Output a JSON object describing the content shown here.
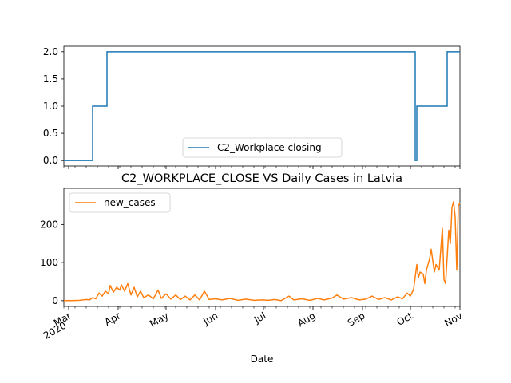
{
  "colors": {
    "series_blue": "#1f77b4",
    "series_orange": "#ff7f0e",
    "axes": "#000000",
    "legend_border": "#cccccc"
  },
  "chart_data": [
    {
      "type": "line",
      "title": "",
      "xlabel": "",
      "ylabel": "",
      "legend_placement": "lower center",
      "grid": false,
      "x_range": [
        "2020-02-27",
        "2020-11-01"
      ],
      "ylim": [
        -0.1,
        2.1
      ],
      "yticks": [
        "0.0",
        "0.5",
        "1.0",
        "1.5",
        "2.0"
      ],
      "x_ticklabels_shown": false,
      "series": [
        {
          "name": "C2_Workplace closing",
          "color": "#1f77b4",
          "step": true,
          "points": [
            [
              "2020-02-27",
              0
            ],
            [
              "2020-03-16",
              1
            ],
            [
              "2020-03-25",
              2
            ],
            [
              "2020-10-04",
              0
            ],
            [
              "2020-10-05",
              1
            ],
            [
              "2020-10-24",
              2
            ],
            [
              "2020-11-01",
              2
            ]
          ]
        }
      ]
    },
    {
      "type": "line",
      "title": "C2_WORKPLACE_CLOSE VS Daily Cases in Latvia",
      "xlabel": "Date",
      "ylabel": "",
      "legend_placement": "upper left",
      "grid": false,
      "x_range": [
        "2020-02-27",
        "2020-11-01"
      ],
      "ylim": [
        -15,
        295
      ],
      "yticks": [
        "0",
        "100",
        "200"
      ],
      "xticks": [
        {
          "date": "2020-03-01",
          "label": "Mar",
          "label2": "2020"
        },
        {
          "date": "2020-04-01",
          "label": "Apr"
        },
        {
          "date": "2020-05-01",
          "label": "May"
        },
        {
          "date": "2020-06-01",
          "label": "Jun"
        },
        {
          "date": "2020-07-01",
          "label": "Jul"
        },
        {
          "date": "2020-08-01",
          "label": "Aug"
        },
        {
          "date": "2020-09-01",
          "label": "Sep"
        },
        {
          "date": "2020-10-01",
          "label": "Oct"
        },
        {
          "date": "2020-11-01",
          "label": "Nov"
        }
      ],
      "series": [
        {
          "name": "new_cases",
          "color": "#ff7f0e",
          "points": [
            [
              "2020-02-27",
              0
            ],
            [
              "2020-03-03",
              0
            ],
            [
              "2020-03-08",
              1
            ],
            [
              "2020-03-12",
              3
            ],
            [
              "2020-03-14",
              2
            ],
            [
              "2020-03-16",
              8
            ],
            [
              "2020-03-18",
              5
            ],
            [
              "2020-03-20",
              20
            ],
            [
              "2020-03-22",
              12
            ],
            [
              "2020-03-24",
              25
            ],
            [
              "2020-03-26",
              18
            ],
            [
              "2020-03-27",
              40
            ],
            [
              "2020-03-29",
              22
            ],
            [
              "2020-03-31",
              35
            ],
            [
              "2020-04-02",
              28
            ],
            [
              "2020-04-03",
              42
            ],
            [
              "2020-04-05",
              25
            ],
            [
              "2020-04-07",
              45
            ],
            [
              "2020-04-09",
              15
            ],
            [
              "2020-04-11",
              35
            ],
            [
              "2020-04-13",
              10
            ],
            [
              "2020-04-15",
              25
            ],
            [
              "2020-04-17",
              8
            ],
            [
              "2020-04-20",
              15
            ],
            [
              "2020-04-23",
              5
            ],
            [
              "2020-04-26",
              28
            ],
            [
              "2020-04-28",
              6
            ],
            [
              "2020-05-01",
              18
            ],
            [
              "2020-05-04",
              4
            ],
            [
              "2020-05-07",
              15
            ],
            [
              "2020-05-10",
              3
            ],
            [
              "2020-05-13",
              12
            ],
            [
              "2020-05-16",
              2
            ],
            [
              "2020-05-19",
              15
            ],
            [
              "2020-05-22",
              2
            ],
            [
              "2020-05-25",
              25
            ],
            [
              "2020-05-28",
              3
            ],
            [
              "2020-06-01",
              5
            ],
            [
              "2020-06-05",
              2
            ],
            [
              "2020-06-10",
              6
            ],
            [
              "2020-06-15",
              1
            ],
            [
              "2020-06-20",
              4
            ],
            [
              "2020-06-25",
              1
            ],
            [
              "2020-06-30",
              2
            ],
            [
              "2020-07-04",
              1
            ],
            [
              "2020-07-08",
              3
            ],
            [
              "2020-07-12",
              0
            ],
            [
              "2020-07-17",
              12
            ],
            [
              "2020-07-20",
              2
            ],
            [
              "2020-07-25",
              5
            ],
            [
              "2020-07-30",
              1
            ],
            [
              "2020-08-04",
              6
            ],
            [
              "2020-08-08",
              2
            ],
            [
              "2020-08-13",
              7
            ],
            [
              "2020-08-16",
              15
            ],
            [
              "2020-08-20",
              4
            ],
            [
              "2020-08-25",
              8
            ],
            [
              "2020-08-30",
              2
            ],
            [
              "2020-09-03",
              4
            ],
            [
              "2020-09-07",
              12
            ],
            [
              "2020-09-11",
              3
            ],
            [
              "2020-09-15",
              8
            ],
            [
              "2020-09-19",
              2
            ],
            [
              "2020-09-23",
              10
            ],
            [
              "2020-09-26",
              5
            ],
            [
              "2020-09-29",
              20
            ],
            [
              "2020-10-01",
              12
            ],
            [
              "2020-10-03",
              30
            ],
            [
              "2020-10-05",
              95
            ],
            [
              "2020-10-06",
              60
            ],
            [
              "2020-10-07",
              75
            ],
            [
              "2020-10-09",
              70
            ],
            [
              "2020-10-10",
              45
            ],
            [
              "2020-10-11",
              80
            ],
            [
              "2020-10-13",
              110
            ],
            [
              "2020-10-14",
              135
            ],
            [
              "2020-10-16",
              75
            ],
            [
              "2020-10-17",
              95
            ],
            [
              "2020-10-19",
              80
            ],
            [
              "2020-10-21",
              190
            ],
            [
              "2020-10-22",
              55
            ],
            [
              "2020-10-23",
              45
            ],
            [
              "2020-10-25",
              185
            ],
            [
              "2020-10-26",
              150
            ],
            [
              "2020-10-27",
              245
            ],
            [
              "2020-10-28",
              260
            ],
            [
              "2020-10-29",
              220
            ],
            [
              "2020-10-30",
              80
            ],
            [
              "2020-10-31",
              250
            ],
            [
              "2020-11-01",
              255
            ]
          ]
        }
      ]
    }
  ]
}
